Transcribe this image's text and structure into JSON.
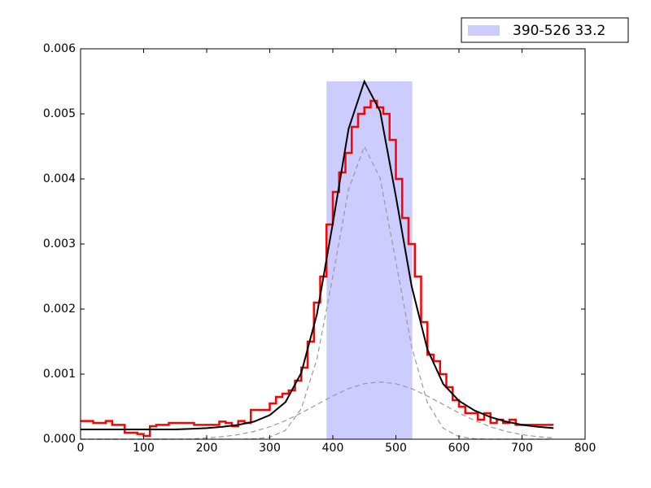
{
  "chart_data": {
    "type": "line",
    "xlim": [
      0,
      800
    ],
    "ylim": [
      0,
      0.006
    ],
    "xticks": [
      0,
      100,
      200,
      300,
      400,
      500,
      600,
      700,
      800
    ],
    "yticks": [
      {
        "value": 0,
        "label": "0.000"
      },
      0.001,
      0.002,
      0.003,
      0.004,
      0.005,
      0.006
    ],
    "legend": "upper right",
    "span": {
      "name": "390-526 33.2",
      "color": "#ccccff",
      "x0": 390,
      "x1": 526,
      "top": 0.0055
    },
    "series": [
      {
        "color": "#999999",
        "dash": true,
        "step": false,
        "width": 1.2,
        "x": [
          0,
          25,
          50,
          75,
          100,
          125,
          150,
          175,
          200,
          225,
          250,
          275,
          300,
          325,
          350,
          375,
          400,
          425,
          450,
          475,
          500,
          525,
          550,
          575,
          600,
          625,
          650,
          675,
          700,
          725,
          750
        ],
        "values": [
          0,
          0,
          0,
          0,
          0,
          0,
          0,
          0,
          0,
          0,
          6e-07,
          5e-06,
          3e-05,
          0.000136,
          0.00047,
          0.00124,
          0.0025,
          0.00384,
          0.0045,
          0.00401,
          0.00273,
          0.00142,
          0.00056,
          0.000169,
          3.9e-05,
          7e-06,
          0,
          0,
          0,
          0,
          0
        ]
      },
      {
        "color": "#999999",
        "dash": true,
        "step": false,
        "width": 1.2,
        "x": [
          0,
          25,
          50,
          75,
          100,
          125,
          150,
          175,
          200,
          225,
          250,
          275,
          300,
          325,
          350,
          375,
          400,
          425,
          450,
          475,
          500,
          525,
          550,
          575,
          600,
          625,
          650,
          675,
          700,
          725,
          750
        ],
        "values": [
          0,
          0,
          0,
          0,
          1e-07,
          2e-07,
          6e-07,
          2e-06,
          2e-05,
          3.87e-05,
          7e-05,
          0.000119,
          0.00019,
          0.000286,
          0.000403,
          0.000534,
          0.000664,
          0.000777,
          0.000853,
          0.00088,
          0.000853,
          0.000777,
          0.000664,
          0.000534,
          0.000403,
          0.000286,
          0.00019,
          0.000119,
          7e-05,
          3.87e-05,
          2e-05
        ]
      },
      {
        "color": "#ff0000",
        "dash": false,
        "step": true,
        "width": 2.5,
        "x": [
          0,
          10,
          20,
          30,
          40,
          50,
          60,
          70,
          80,
          90,
          100,
          110,
          120,
          130,
          140,
          150,
          160,
          170,
          180,
          190,
          200,
          210,
          220,
          230,
          240,
          250,
          260,
          270,
          280,
          290,
          300,
          310,
          320,
          330,
          340,
          350,
          360,
          370,
          380,
          390,
          400,
          410,
          420,
          430,
          440,
          450,
          460,
          470,
          480,
          490,
          500,
          510,
          520,
          530,
          540,
          550,
          560,
          570,
          580,
          590,
          600,
          610,
          620,
          630,
          640,
          650,
          660,
          670,
          680,
          690,
          700,
          710,
          720,
          730,
          740,
          750
        ],
        "values": [
          0.00028,
          0.00028,
          0.00025,
          0.00025,
          0.00028,
          0.00022,
          0.00022,
          0.0001,
          0.0001,
          8e-05,
          5e-05,
          0.0002,
          0.00022,
          0.00022,
          0.00025,
          0.00025,
          0.00025,
          0.00025,
          0.00022,
          0.00022,
          0.00022,
          0.00022,
          0.00027,
          0.00025,
          0.0002,
          0.00028,
          0.00025,
          0.00045,
          0.00045,
          0.00045,
          0.00055,
          0.00065,
          0.0007,
          0.00075,
          0.0009,
          0.0011,
          0.0015,
          0.0021,
          0.0025,
          0.0033,
          0.0038,
          0.0041,
          0.0044,
          0.0048,
          0.005,
          0.0051,
          0.0052,
          0.0051,
          0.005,
          0.0046,
          0.004,
          0.0034,
          0.003,
          0.0025,
          0.0018,
          0.0013,
          0.0012,
          0.001,
          0.0008,
          0.0006,
          0.0005,
          0.0004,
          0.0004,
          0.0003,
          0.0004,
          0.00025,
          0.0003,
          0.00025,
          0.0003,
          0.00022,
          0.00022,
          0.00022,
          0.00022,
          0.00022,
          0.00022,
          0.00022
        ]
      },
      {
        "color": "#000000",
        "dash": false,
        "step": false,
        "width": 2,
        "x": [
          0,
          25,
          50,
          75,
          100,
          125,
          150,
          175,
          200,
          225,
          250,
          275,
          300,
          325,
          350,
          375,
          400,
          425,
          450,
          475,
          500,
          525,
          550,
          575,
          600,
          625,
          650,
          675,
          700,
          725,
          750
        ],
        "values": [
          0.00015,
          0.00015,
          0.00015,
          0.00015,
          0.00015,
          0.00015,
          0.00015,
          0.00016,
          0.00017,
          0.00019,
          0.00022,
          0.00027,
          0.00037,
          0.00057,
          0.00102,
          0.00193,
          0.00332,
          0.00477,
          0.0055,
          0.00504,
          0.00373,
          0.00235,
          0.00138,
          0.00085,
          0.00059,
          0.00044,
          0.00034,
          0.00027,
          0.00022,
          0.00019,
          0.00017
        ]
      }
    ]
  }
}
